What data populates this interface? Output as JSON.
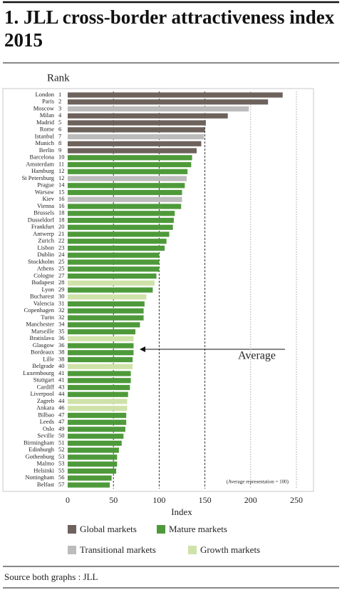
{
  "chart_data": {
    "type": "bar",
    "orientation": "horizontal",
    "title": "1. JLL cross-border attractiveness index 2015",
    "rank_label": "Rank",
    "x_label": "Index",
    "source": "Source both graphs : JLL",
    "annotations": [
      "Average",
      "(Average representation = 100)"
    ],
    "legend": [
      {
        "name": "Global markets",
        "color": "#6d625c"
      },
      {
        "name": "Mature markets",
        "color": "#4e9a3b"
      },
      {
        "name": "Transitional markets",
        "color": "#bcbcbc"
      },
      {
        "name": "Growth markets",
        "color": "#cfe2a9"
      }
    ],
    "categories": [
      "London",
      "Paris",
      "Moscow",
      "Milan",
      "Madrid",
      "Rome",
      "Istanbul",
      "Munich",
      "Berlin",
      "Barcelona",
      "Amsterdam",
      "Hamburg",
      "St Petersburg",
      "Prague",
      "Warsaw",
      "Kiev",
      "Vienna",
      "Brussels",
      "Dusseldorf",
      "Frankfurt",
      "Antwerp",
      "Zurich",
      "Lisbon",
      "Dublin",
      "Stockholm",
      "Athens",
      "Cologne",
      "Budapest",
      "Lyon",
      "Bucharest",
      "Valencia",
      "Copenhagen",
      "Turin",
      "Manchester",
      "Marseille",
      "Bratislava",
      "Glasgow",
      "Bordeaux",
      "Lille",
      "Belgrade",
      "Luxembourg",
      "Stuttgart",
      "Cardiff",
      "Liverpool",
      "Zagreb",
      "Ankara",
      "Bilbao",
      "Leeds",
      "Oslo",
      "Seville",
      "Birmingham",
      "Edinburgh",
      "Gothenburg",
      "Malmo",
      "Helsinki",
      "Nottingham",
      "Belfast"
    ],
    "ranks": [
      1,
      2,
      3,
      4,
      5,
      6,
      7,
      8,
      9,
      10,
      11,
      12,
      12,
      14,
      15,
      16,
      16,
      18,
      18,
      20,
      21,
      22,
      23,
      24,
      25,
      25,
      27,
      28,
      29,
      30,
      31,
      32,
      32,
      34,
      35,
      36,
      36,
      38,
      38,
      40,
      41,
      41,
      43,
      44,
      44,
      46,
      47,
      47,
      49,
      50,
      51,
      52,
      53,
      53,
      55,
      56,
      57
    ],
    "markets": [
      0,
      0,
      2,
      0,
      0,
      0,
      2,
      0,
      0,
      1,
      1,
      1,
      2,
      1,
      1,
      2,
      1,
      1,
      1,
      1,
      1,
      1,
      1,
      1,
      1,
      1,
      1,
      3,
      1,
      3,
      1,
      1,
      1,
      1,
      1,
      3,
      1,
      1,
      1,
      3,
      1,
      1,
      1,
      1,
      3,
      3,
      1,
      1,
      1,
      1,
      1,
      1,
      1,
      1,
      1,
      1,
      1
    ],
    "values": [
      235,
      219,
      198,
      175,
      151,
      150,
      149,
      146,
      141,
      136,
      135,
      131,
      130,
      128,
      125,
      125,
      124,
      117,
      116,
      115,
      111,
      108,
      106,
      100,
      100,
      100,
      97,
      95,
      93,
      86,
      84,
      83,
      83,
      79,
      74,
      72,
      72,
      72,
      71,
      71,
      69,
      69,
      68,
      66,
      65,
      65,
      64,
      64,
      63,
      61,
      59,
      56,
      54,
      54,
      53,
      48,
      46
    ],
    "xlim": [
      0,
      250
    ],
    "xticks": [
      0,
      50,
      100,
      150,
      200,
      250
    ],
    "grid": true
  }
}
